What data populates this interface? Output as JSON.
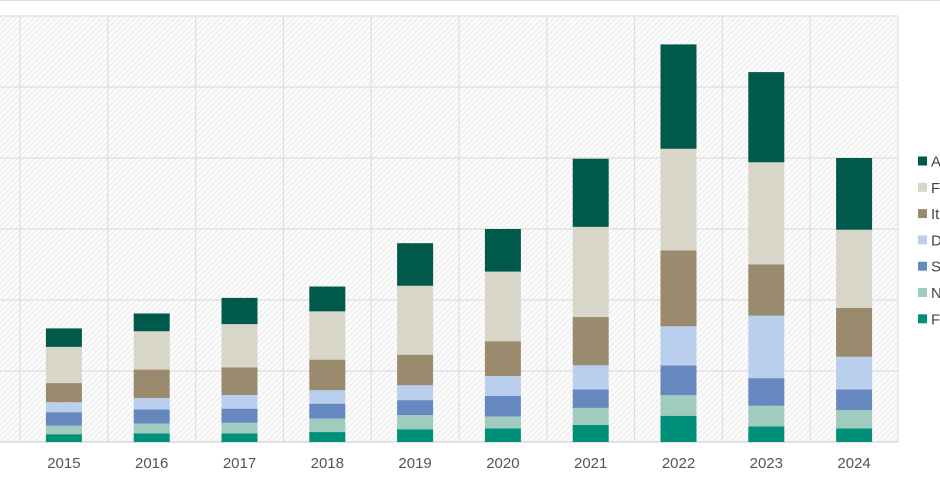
{
  "chart_data": {
    "type": "bar",
    "stacked": true,
    "title": "",
    "xlabel": "",
    "ylabel": "",
    "ylim": [
      0,
      600
    ],
    "ystep": 100,
    "grid": true,
    "legend_position": "right",
    "categories": [
      "2015",
      "2016",
      "2017",
      "2018",
      "2019",
      "2020",
      "2021",
      "2022",
      "2023",
      "2024"
    ],
    "series": [
      {
        "name": "F",
        "color": "#00907a",
        "values": [
          11,
          12,
          12,
          14,
          18,
          19,
          24,
          37,
          22,
          19
        ]
      },
      {
        "name": "N",
        "color": "#a0cbbf",
        "values": [
          12,
          14,
          15,
          19,
          20,
          17,
          24,
          29,
          29,
          26
        ]
      },
      {
        "name": "S",
        "color": "#6589bf",
        "values": [
          19,
          20,
          20,
          21,
          21,
          29,
          26,
          42,
          39,
          29
        ]
      },
      {
        "name": "D",
        "color": "#b9cfed",
        "values": [
          14,
          16,
          19,
          19,
          21,
          28,
          34,
          55,
          88,
          46
        ]
      },
      {
        "name": "It",
        "color": "#9a8a6e",
        "values": [
          27,
          40,
          39,
          43,
          43,
          49,
          68,
          107,
          72,
          69
        ]
      },
      {
        "name": "F",
        "color": "#d8d5c9",
        "values": [
          51,
          54,
          61,
          68,
          97,
          98,
          127,
          143,
          144,
          110
        ]
      },
      {
        "name": "A",
        "color": "#005a4c",
        "values": [
          26,
          25,
          37,
          35,
          60,
          60,
          96,
          147,
          127,
          101
        ]
      }
    ]
  }
}
